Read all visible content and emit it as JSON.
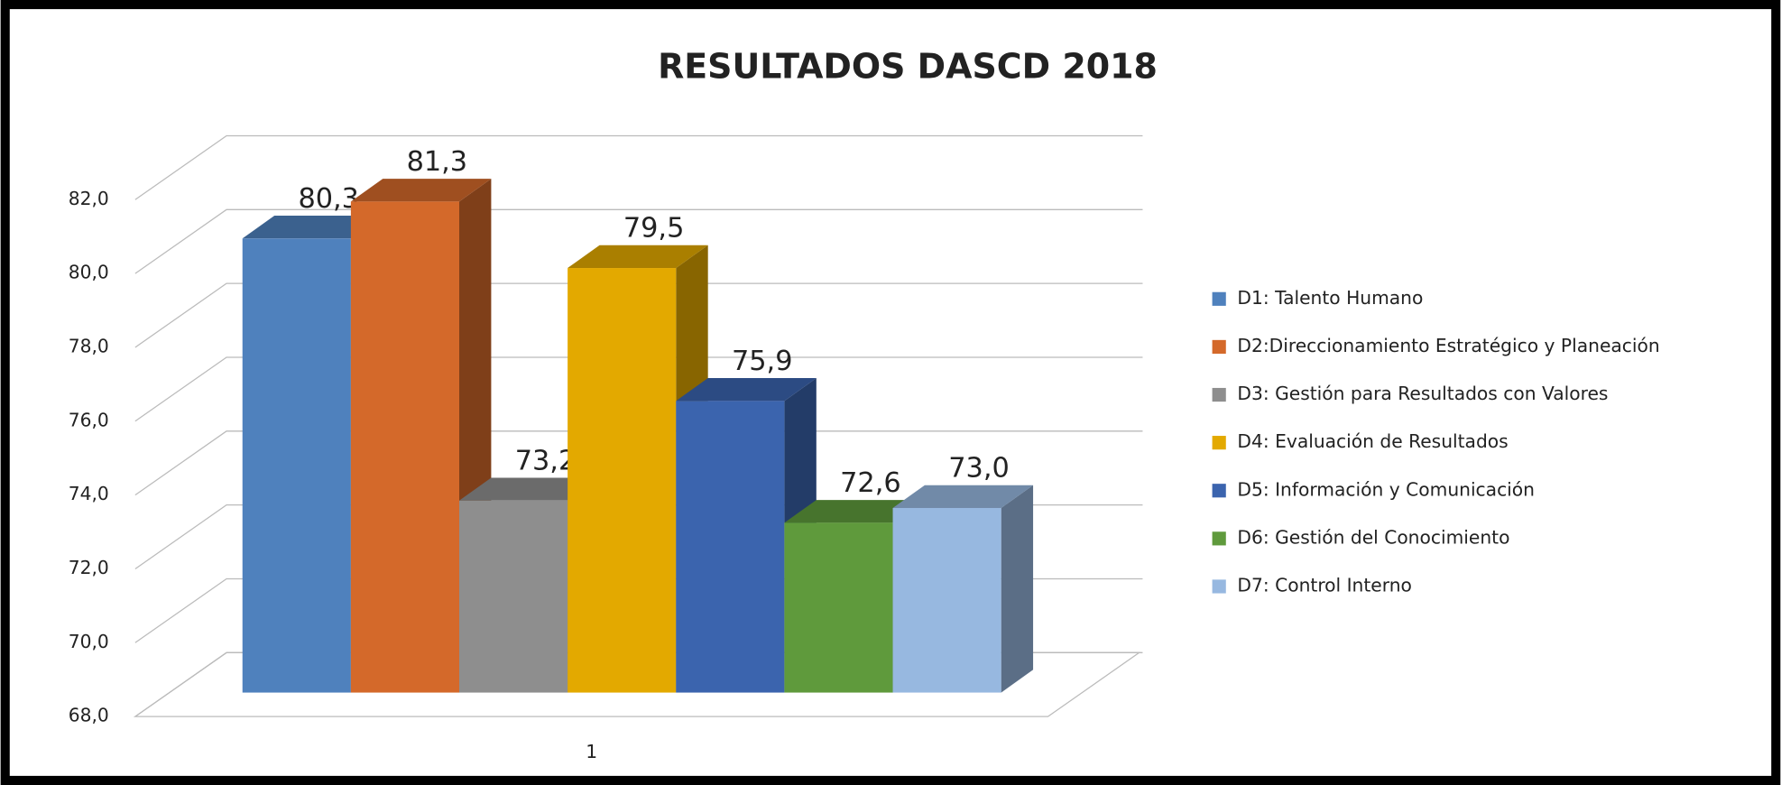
{
  "chart_data": {
    "type": "bar3d",
    "title": "RESULTADOS DASCD 2018",
    "categories": [
      "1"
    ],
    "series": [
      {
        "name": "D1: Talento Humano",
        "color": "#4f81bd",
        "values": [
          80.3
        ],
        "value_labels": [
          "80,3"
        ]
      },
      {
        "name": "D2:Direccionamiento Estratégico y Planeación",
        "color": "#d4692a",
        "values": [
          81.3
        ],
        "value_labels": [
          "81,3"
        ]
      },
      {
        "name": "D3: Gestión para Resultados con Valores",
        "color": "#8e8e8e",
        "values": [
          73.2
        ],
        "value_labels": [
          "73,2"
        ]
      },
      {
        "name": "D4: Evaluación de Resultados",
        "color": "#e3a900",
        "values": [
          79.5
        ],
        "value_labels": [
          "79,5"
        ]
      },
      {
        "name": "D5: Información y Comunicación",
        "color": "#3b64ae",
        "values": [
          75.9
        ],
        "value_labels": [
          "75,9"
        ]
      },
      {
        "name": "D6: Gestión del Conocimiento",
        "color": "#5f9a3c",
        "values": [
          72.6
        ],
        "value_labels": [
          "72,6"
        ]
      },
      {
        "name": "D7: Control Interno",
        "color": "#97b8e0",
        "values": [
          73.0
        ],
        "value_labels": [
          "73,0"
        ]
      }
    ],
    "ylim": [
      68,
      82
    ],
    "yticks": [
      {
        "value": 68,
        "label": "68,0"
      },
      {
        "value": 70,
        "label": "70,0"
      },
      {
        "value": 72,
        "label": "72,0"
      },
      {
        "value": 74,
        "label": "74,0"
      },
      {
        "value": 76,
        "label": "76,0"
      },
      {
        "value": 78,
        "label": "78,0"
      },
      {
        "value": 80,
        "label": "80,0"
      },
      {
        "value": 82,
        "label": "82,0"
      }
    ],
    "grid": true,
    "legend": "right"
  }
}
